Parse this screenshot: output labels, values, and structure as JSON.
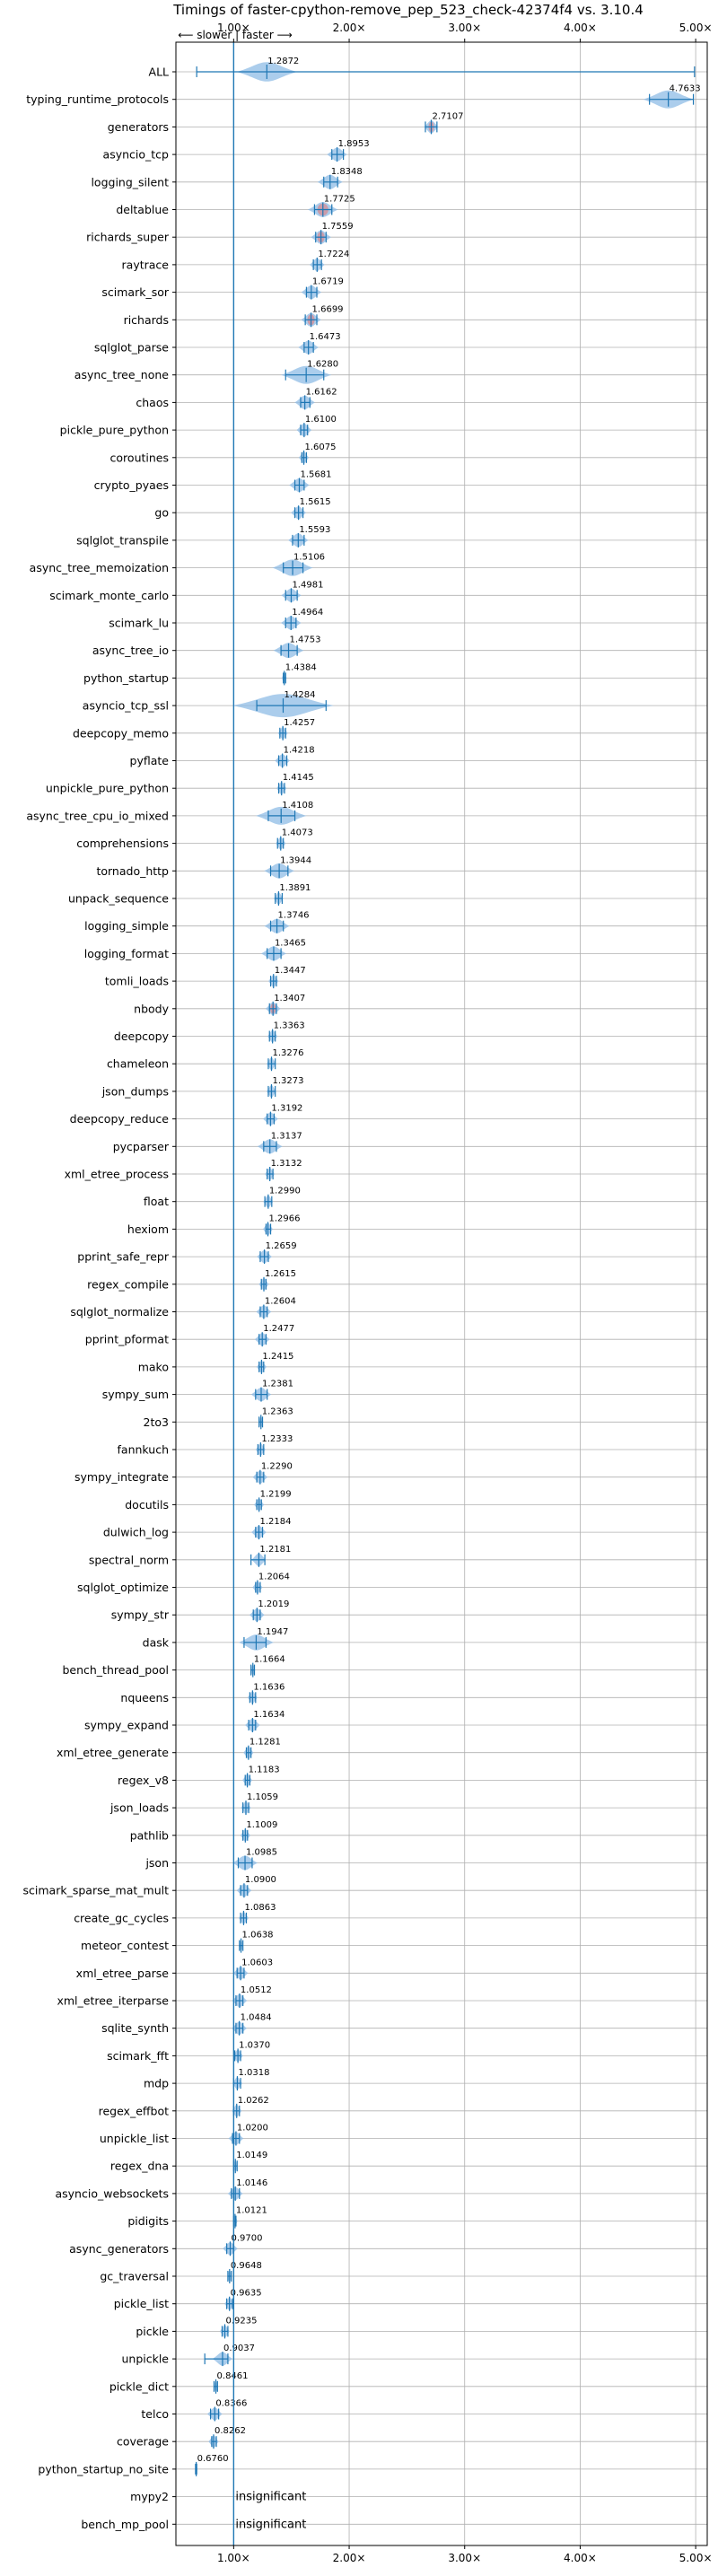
{
  "chart_data": {
    "type": "violin",
    "title": "Timings of faster-cpython-remove_pep_523_check-42374f4 vs. 3.10.4",
    "direction_note": "⟵ slower | faster ⟶",
    "xlim": [
      0.5,
      5.1
    ],
    "xticks": [
      1.0,
      2.0,
      3.0,
      4.0,
      5.0
    ],
    "xtick_labels": [
      "1.00×",
      "2.00×",
      "3.00×",
      "4.00×",
      "5.00×"
    ],
    "grid": true,
    "reference_line": 1.0,
    "colors": {
      "violin": "#8fbce6",
      "whisker": "#1f77b4",
      "slower_mark": "#e47575",
      "reference": "#1f77b4"
    },
    "insignificant_label": "insignificant",
    "rows": [
      {
        "name": "ALL",
        "value": 1.2872,
        "min": 0.68,
        "max": 4.99,
        "spread": 0.12
      },
      {
        "name": "typing_runtime_protocols",
        "value": 4.7633,
        "min": 4.6,
        "max": 4.98,
        "spread": 0.1
      },
      {
        "name": "generators",
        "value": 2.7107,
        "min": 2.66,
        "max": 2.76,
        "spread": 0.03,
        "slower_mark": true
      },
      {
        "name": "asyncio_tcp",
        "value": 1.8953,
        "min": 1.85,
        "max": 1.95,
        "spread": 0.04
      },
      {
        "name": "logging_silent",
        "value": 1.8348,
        "min": 1.78,
        "max": 1.9,
        "spread": 0.05
      },
      {
        "name": "deltablue",
        "value": 1.7725,
        "min": 1.7,
        "max": 1.85,
        "spread": 0.06,
        "slower_mark": true
      },
      {
        "name": "richards_super",
        "value": 1.7559,
        "min": 1.71,
        "max": 1.8,
        "spread": 0.04,
        "slower_mark": true
      },
      {
        "name": "raytrace",
        "value": 1.7224,
        "min": 1.69,
        "max": 1.76,
        "spread": 0.03
      },
      {
        "name": "scimark_sor",
        "value": 1.6719,
        "min": 1.63,
        "max": 1.72,
        "spread": 0.04
      },
      {
        "name": "richards",
        "value": 1.6699,
        "min": 1.62,
        "max": 1.72,
        "spread": 0.04,
        "slower_mark": true
      },
      {
        "name": "sqlglot_parse",
        "value": 1.6473,
        "min": 1.61,
        "max": 1.69,
        "spread": 0.04
      },
      {
        "name": "async_tree_none",
        "value": 1.628,
        "min": 1.45,
        "max": 1.78,
        "spread": 0.1
      },
      {
        "name": "chaos",
        "value": 1.6162,
        "min": 1.58,
        "max": 1.66,
        "spread": 0.04
      },
      {
        "name": "pickle_pure_python",
        "value": 1.61,
        "min": 1.58,
        "max": 1.64,
        "spread": 0.03
      },
      {
        "name": "coroutines",
        "value": 1.6075,
        "min": 1.59,
        "max": 1.63,
        "spread": 0.02
      },
      {
        "name": "crypto_pyaes",
        "value": 1.5681,
        "min": 1.53,
        "max": 1.61,
        "spread": 0.04
      },
      {
        "name": "go",
        "value": 1.5615,
        "min": 1.53,
        "max": 1.6,
        "spread": 0.03
      },
      {
        "name": "sqlglot_transpile",
        "value": 1.5593,
        "min": 1.51,
        "max": 1.61,
        "spread": 0.04
      },
      {
        "name": "async_tree_memoization",
        "value": 1.5106,
        "min": 1.43,
        "max": 1.6,
        "spread": 0.08
      },
      {
        "name": "scimark_monte_carlo",
        "value": 1.4981,
        "min": 1.45,
        "max": 1.55,
        "spread": 0.04
      },
      {
        "name": "scimark_lu",
        "value": 1.4964,
        "min": 1.45,
        "max": 1.54,
        "spread": 0.04
      },
      {
        "name": "async_tree_io",
        "value": 1.4753,
        "min": 1.41,
        "max": 1.55,
        "spread": 0.06
      },
      {
        "name": "python_startup",
        "value": 1.4384,
        "min": 1.43,
        "max": 1.45,
        "spread": 0.01
      },
      {
        "name": "asyncio_tcp_ssl",
        "value": 1.4284,
        "min": 1.2,
        "max": 1.8,
        "spread": 0.2
      },
      {
        "name": "deepcopy_memo",
        "value": 1.4257,
        "min": 1.4,
        "max": 1.45,
        "spread": 0.02
      },
      {
        "name": "pyflate",
        "value": 1.4218,
        "min": 1.39,
        "max": 1.46,
        "spread": 0.03
      },
      {
        "name": "unpickle_pure_python",
        "value": 1.4145,
        "min": 1.39,
        "max": 1.44,
        "spread": 0.02
      },
      {
        "name": "async_tree_cpu_io_mixed",
        "value": 1.4108,
        "min": 1.3,
        "max": 1.53,
        "spread": 0.1
      },
      {
        "name": "comprehensions",
        "value": 1.4073,
        "min": 1.38,
        "max": 1.43,
        "spread": 0.02
      },
      {
        "name": "tornado_http",
        "value": 1.3944,
        "min": 1.32,
        "max": 1.47,
        "spread": 0.06
      },
      {
        "name": "unpack_sequence",
        "value": 1.3891,
        "min": 1.36,
        "max": 1.42,
        "spread": 0.02
      },
      {
        "name": "logging_simple",
        "value": 1.3746,
        "min": 1.32,
        "max": 1.43,
        "spread": 0.05
      },
      {
        "name": "logging_format",
        "value": 1.3465,
        "min": 1.29,
        "max": 1.41,
        "spread": 0.05
      },
      {
        "name": "tomli_loads",
        "value": 1.3447,
        "min": 1.32,
        "max": 1.37,
        "spread": 0.02
      },
      {
        "name": "nbody",
        "value": 1.3407,
        "min": 1.31,
        "max": 1.37,
        "spread": 0.03,
        "slower_mark": true
      },
      {
        "name": "deepcopy",
        "value": 1.3363,
        "min": 1.31,
        "max": 1.36,
        "spread": 0.02
      },
      {
        "name": "chameleon",
        "value": 1.3276,
        "min": 1.3,
        "max": 1.36,
        "spread": 0.02
      },
      {
        "name": "json_dumps",
        "value": 1.3273,
        "min": 1.3,
        "max": 1.36,
        "spread": 0.02
      },
      {
        "name": "deepcopy_reduce",
        "value": 1.3192,
        "min": 1.29,
        "max": 1.35,
        "spread": 0.03
      },
      {
        "name": "pycparser",
        "value": 1.3137,
        "min": 1.26,
        "max": 1.37,
        "spread": 0.05
      },
      {
        "name": "xml_etree_process",
        "value": 1.3132,
        "min": 1.29,
        "max": 1.34,
        "spread": 0.02
      },
      {
        "name": "float",
        "value": 1.299,
        "min": 1.27,
        "max": 1.33,
        "spread": 0.02
      },
      {
        "name": "hexiom",
        "value": 1.2966,
        "min": 1.28,
        "max": 1.32,
        "spread": 0.02
      },
      {
        "name": "pprint_safe_repr",
        "value": 1.2659,
        "min": 1.23,
        "max": 1.3,
        "spread": 0.03
      },
      {
        "name": "regex_compile",
        "value": 1.2615,
        "min": 1.24,
        "max": 1.28,
        "spread": 0.02
      },
      {
        "name": "sqlglot_normalize",
        "value": 1.2604,
        "min": 1.23,
        "max": 1.29,
        "spread": 0.03
      },
      {
        "name": "pprint_pformat",
        "value": 1.2477,
        "min": 1.22,
        "max": 1.28,
        "spread": 0.03
      },
      {
        "name": "mako",
        "value": 1.2415,
        "min": 1.22,
        "max": 1.26,
        "spread": 0.02
      },
      {
        "name": "sympy_sum",
        "value": 1.2381,
        "min": 1.19,
        "max": 1.29,
        "spread": 0.04
      },
      {
        "name": "2to3",
        "value": 1.2363,
        "min": 1.22,
        "max": 1.25,
        "spread": 0.01
      },
      {
        "name": "fannkuch",
        "value": 1.2333,
        "min": 1.21,
        "max": 1.26,
        "spread": 0.02
      },
      {
        "name": "sympy_integrate",
        "value": 1.229,
        "min": 1.2,
        "max": 1.26,
        "spread": 0.03
      },
      {
        "name": "docutils",
        "value": 1.2199,
        "min": 1.2,
        "max": 1.24,
        "spread": 0.02
      },
      {
        "name": "dulwich_log",
        "value": 1.2184,
        "min": 1.19,
        "max": 1.25,
        "spread": 0.03
      },
      {
        "name": "spectral_norm",
        "value": 1.2181,
        "min": 1.15,
        "max": 1.27,
        "spread": 0.03
      },
      {
        "name": "sqlglot_optimize",
        "value": 1.2064,
        "min": 1.19,
        "max": 1.23,
        "spread": 0.02
      },
      {
        "name": "sympy_str",
        "value": 1.2019,
        "min": 1.17,
        "max": 1.23,
        "spread": 0.03
      },
      {
        "name": "dask",
        "value": 1.1947,
        "min": 1.09,
        "max": 1.28,
        "spread": 0.07
      },
      {
        "name": "bench_thread_pool",
        "value": 1.1664,
        "min": 1.15,
        "max": 1.18,
        "spread": 0.01
      },
      {
        "name": "nqueens",
        "value": 1.1636,
        "min": 1.14,
        "max": 1.19,
        "spread": 0.02
      },
      {
        "name": "sympy_expand",
        "value": 1.1634,
        "min": 1.13,
        "max": 1.19,
        "spread": 0.03
      },
      {
        "name": "xml_etree_generate",
        "value": 1.1281,
        "min": 1.11,
        "max": 1.15,
        "spread": 0.02
      },
      {
        "name": "regex_v8",
        "value": 1.1183,
        "min": 1.1,
        "max": 1.14,
        "spread": 0.02
      },
      {
        "name": "json_loads",
        "value": 1.1059,
        "min": 1.08,
        "max": 1.13,
        "spread": 0.02
      },
      {
        "name": "pathlib",
        "value": 1.1009,
        "min": 1.08,
        "max": 1.12,
        "spread": 0.02
      },
      {
        "name": "json",
        "value": 1.0985,
        "min": 1.04,
        "max": 1.16,
        "spread": 0.05
      },
      {
        "name": "scimark_sparse_mat_mult",
        "value": 1.09,
        "min": 1.06,
        "max": 1.12,
        "spread": 0.03
      },
      {
        "name": "create_gc_cycles",
        "value": 1.0863,
        "min": 1.06,
        "max": 1.11,
        "spread": 0.02
      },
      {
        "name": "meteor_contest",
        "value": 1.0638,
        "min": 1.05,
        "max": 1.08,
        "spread": 0.01
      },
      {
        "name": "xml_etree_parse",
        "value": 1.0603,
        "min": 1.03,
        "max": 1.09,
        "spread": 0.03
      },
      {
        "name": "xml_etree_iterparse",
        "value": 1.0512,
        "min": 1.02,
        "max": 1.08,
        "spread": 0.03
      },
      {
        "name": "sqlite_synth",
        "value": 1.0484,
        "min": 1.02,
        "max": 1.08,
        "spread": 0.03
      },
      {
        "name": "scimark_fft",
        "value": 1.037,
        "min": 1.01,
        "max": 1.06,
        "spread": 0.02
      },
      {
        "name": "mdp",
        "value": 1.0318,
        "min": 1.0,
        "max": 1.06,
        "spread": 0.02
      },
      {
        "name": "regex_effbot",
        "value": 1.0262,
        "min": 1.0,
        "max": 1.05,
        "spread": 0.02
      },
      {
        "name": "unpickle_list",
        "value": 1.02,
        "min": 0.99,
        "max": 1.05,
        "spread": 0.03
      },
      {
        "name": "regex_dna",
        "value": 1.0149,
        "min": 1.0,
        "max": 1.03,
        "spread": 0.01
      },
      {
        "name": "asyncio_websockets",
        "value": 1.0146,
        "min": 0.98,
        "max": 1.05,
        "spread": 0.03
      },
      {
        "name": "pidigits",
        "value": 1.0121,
        "min": 1.0,
        "max": 1.02,
        "spread": 0.01
      },
      {
        "name": "async_generators",
        "value": 0.97,
        "min": 0.94,
        "max": 1.0,
        "spread": 0.03
      },
      {
        "name": "gc_traversal",
        "value": 0.9648,
        "min": 0.95,
        "max": 0.98,
        "spread": 0.01
      },
      {
        "name": "pickle_list",
        "value": 0.9635,
        "min": 0.94,
        "max": 0.99,
        "spread": 0.02
      },
      {
        "name": "pickle",
        "value": 0.9235,
        "min": 0.9,
        "max": 0.95,
        "spread": 0.02
      },
      {
        "name": "unpickle",
        "value": 0.9037,
        "min": 0.75,
        "max": 0.95,
        "spread": 0.04
      },
      {
        "name": "pickle_dict",
        "value": 0.8461,
        "min": 0.83,
        "max": 0.86,
        "spread": 0.01
      },
      {
        "name": "telco",
        "value": 0.8366,
        "min": 0.8,
        "max": 0.87,
        "spread": 0.03
      },
      {
        "name": "coverage",
        "value": 0.8262,
        "min": 0.81,
        "max": 0.85,
        "spread": 0.02
      },
      {
        "name": "python_startup_no_site",
        "value": 0.676,
        "min": 0.67,
        "max": 0.68,
        "spread": 0.005
      },
      {
        "name": "mypy2",
        "value": null,
        "insignificant": true
      },
      {
        "name": "bench_mp_pool",
        "value": null,
        "insignificant": true
      }
    ]
  }
}
